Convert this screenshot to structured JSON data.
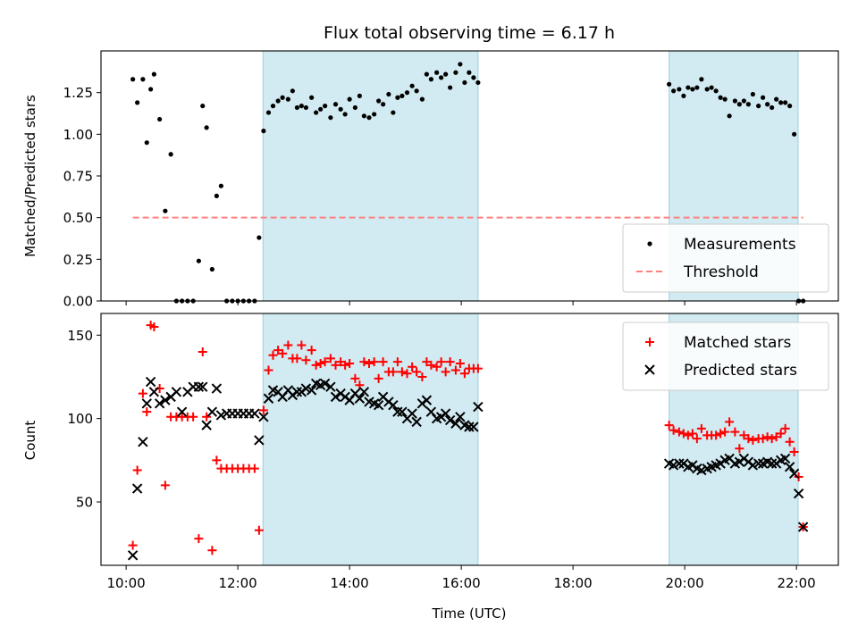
{
  "chart_data": {
    "title": "Flux total observing time = 6.17 h",
    "type": "scatter",
    "xlabel": "Time (UTC)",
    "xlim": [
      9.55,
      22.75
    ],
    "xticks": [
      10,
      12,
      14,
      16,
      18,
      20,
      22
    ],
    "xtick_labels": [
      "10:00",
      "12:00",
      "14:00",
      "16:00",
      "18:00",
      "20:00",
      "22:00"
    ],
    "shaded_intervals": [
      [
        12.45,
        16.3
      ],
      [
        19.72,
        22.03
      ]
    ],
    "shade_color": "#add8e6",
    "panels": [
      {
        "name": "ratio",
        "ylabel": "Matched/Predicted stars",
        "ylim": [
          0,
          1.5
        ],
        "yticks": [
          0,
          0.25,
          0.5,
          0.75,
          1.0,
          1.25
        ],
        "ytick_labels": [
          "0.00",
          "0.25",
          "0.50",
          "0.75",
          "1.00",
          "1.25"
        ],
        "legend_position": "lower-right",
        "series": [
          {
            "name": "Measurements",
            "marker": "dot",
            "color": "#000000",
            "x": [
              10.12,
              10.2,
              10.3,
              10.37,
              10.44,
              10.5,
              10.6,
              10.7,
              10.8,
              10.9,
              11.0,
              11.1,
              11.2,
              11.3,
              11.37,
              11.44,
              11.54,
              11.62,
              11.7,
              11.8,
              11.9,
              12.0,
              12.1,
              12.2,
              12.3,
              12.38,
              12.46,
              12.55,
              12.63,
              12.72,
              12.8,
              12.9,
              12.98,
              13.06,
              13.14,
              13.22,
              13.32,
              13.4,
              13.48,
              13.56,
              13.66,
              13.75,
              13.84,
              13.92,
              14.0,
              14.1,
              14.18,
              14.26,
              14.35,
              14.44,
              14.52,
              14.6,
              14.7,
              14.78,
              14.86,
              14.94,
              15.03,
              15.12,
              15.2,
              15.3,
              15.38,
              15.46,
              15.56,
              15.64,
              15.72,
              15.8,
              15.9,
              15.98,
              16.06,
              16.14,
              16.22,
              16.3,
              19.72,
              19.8,
              19.9,
              19.98,
              20.06,
              20.14,
              20.22,
              20.3,
              20.4,
              20.48,
              20.56,
              20.64,
              20.72,
              20.8,
              20.9,
              20.98,
              21.06,
              21.14,
              21.22,
              21.32,
              21.4,
              21.48,
              21.56,
              21.64,
              21.72,
              21.8,
              21.88,
              21.96,
              22.04,
              22.12
            ],
            "y": [
              1.33,
              1.19,
              1.33,
              0.95,
              1.27,
              1.36,
              1.09,
              0.54,
              0.88,
              0.0,
              0.0,
              0.0,
              0.0,
              0.24,
              1.17,
              1.04,
              0.19,
              0.63,
              0.69,
              0.0,
              0.0,
              0.0,
              0.0,
              0.0,
              0.0,
              0.38,
              1.02,
              1.13,
              1.17,
              1.2,
              1.22,
              1.21,
              1.26,
              1.16,
              1.17,
              1.16,
              1.22,
              1.13,
              1.15,
              1.17,
              1.1,
              1.18,
              1.15,
              1.12,
              1.21,
              1.16,
              1.23,
              1.11,
              1.1,
              1.12,
              1.2,
              1.18,
              1.24,
              1.13,
              1.22,
              1.23,
              1.25,
              1.29,
              1.26,
              1.21,
              1.36,
              1.33,
              1.37,
              1.34,
              1.36,
              1.28,
              1.37,
              1.42,
              1.31,
              1.37,
              1.34,
              1.31,
              1.3,
              1.26,
              1.27,
              1.23,
              1.28,
              1.27,
              1.28,
              1.33,
              1.27,
              1.28,
              1.26,
              1.22,
              1.21,
              1.11,
              1.2,
              1.18,
              1.2,
              1.18,
              1.24,
              1.17,
              1.22,
              1.18,
              1.16,
              1.21,
              1.19,
              1.19,
              1.17,
              1.0,
              0.0,
              0.0
            ]
          },
          {
            "name": "Threshold",
            "marker": "dashed-line",
            "color": "#ff8080",
            "x": [
              10.12,
              22.12
            ],
            "y": [
              0.5,
              0.5
            ]
          }
        ]
      },
      {
        "name": "count",
        "ylabel": "Count",
        "ylim": [
          12,
          163
        ],
        "yticks": [
          50,
          100,
          150
        ],
        "ytick_labels": [
          "50",
          "100",
          "150"
        ],
        "legend_position": "upper-right",
        "series": [
          {
            "name": "Matched stars",
            "marker": "plus",
            "color": "#ff0000",
            "x": [
              10.12,
              10.2,
              10.3,
              10.37,
              10.44,
              10.5,
              10.6,
              10.7,
              10.8,
              10.9,
              11.0,
              11.1,
              11.2,
              11.3,
              11.37,
              11.44,
              11.54,
              11.62,
              11.7,
              11.8,
              11.9,
              12.0,
              12.1,
              12.2,
              12.3,
              12.38,
              12.46,
              12.55,
              12.63,
              12.72,
              12.8,
              12.9,
              12.98,
              13.06,
              13.14,
              13.22,
              13.32,
              13.4,
              13.48,
              13.56,
              13.66,
              13.75,
              13.84,
              13.92,
              14.0,
              14.1,
              14.18,
              14.26,
              14.35,
              14.44,
              14.52,
              14.6,
              14.7,
              14.78,
              14.86,
              14.94,
              15.03,
              15.12,
              15.2,
              15.3,
              15.38,
              15.46,
              15.56,
              15.64,
              15.72,
              15.8,
              15.9,
              15.98,
              16.06,
              16.14,
              16.22,
              16.3,
              19.72,
              19.8,
              19.9,
              19.98,
              20.06,
              20.14,
              20.22,
              20.3,
              20.4,
              20.48,
              20.56,
              20.64,
              20.72,
              20.8,
              20.9,
              20.98,
              21.06,
              21.14,
              21.22,
              21.32,
              21.4,
              21.48,
              21.56,
              21.64,
              21.72,
              21.8,
              21.88,
              21.96,
              22.04,
              22.12
            ],
            "y": [
              24,
              69,
              115,
              104,
              156,
              155,
              118,
              60,
              101,
              101,
              101,
              101,
              101,
              28,
              140,
              101,
              21,
              75,
              70,
              70,
              70,
              70,
              70,
              70,
              70,
              33,
              105,
              129,
              138,
              141,
              139,
              144,
              136,
              136,
              144,
              135,
              141,
              132,
              133,
              134,
              136,
              132,
              134,
              132,
              133,
              124,
              120,
              134,
              133,
              134,
              124,
              134,
              128,
              128,
              134,
              128,
              127,
              131,
              128,
              125,
              134,
              132,
              131,
              134,
              128,
              134,
              129,
              133,
              127,
              130,
              130,
              130,
              96,
              93,
              92,
              91,
              90,
              91,
              88,
              94,
              90,
              90,
              90,
              91,
              92,
              98,
              92,
              82,
              90,
              88,
              87,
              88,
              88,
              89,
              88,
              89,
              91,
              94,
              86,
              80,
              65,
              35
            ]
          },
          {
            "name": "Predicted stars",
            "marker": "x",
            "color": "#000000",
            "x": [
              10.12,
              10.2,
              10.3,
              10.37,
              10.44,
              10.5,
              10.6,
              10.7,
              10.8,
              10.9,
              11.0,
              11.1,
              11.2,
              11.3,
              11.37,
              11.44,
              11.54,
              11.62,
              11.7,
              11.8,
              11.9,
              12.0,
              12.1,
              12.2,
              12.3,
              12.38,
              12.46,
              12.55,
              12.63,
              12.72,
              12.8,
              12.9,
              12.98,
              13.06,
              13.14,
              13.22,
              13.32,
              13.4,
              13.48,
              13.56,
              13.66,
              13.75,
              13.84,
              13.92,
              14.0,
              14.1,
              14.18,
              14.26,
              14.35,
              14.44,
              14.52,
              14.6,
              14.7,
              14.78,
              14.86,
              14.94,
              15.03,
              15.12,
              15.2,
              15.3,
              15.38,
              15.46,
              15.56,
              15.64,
              15.72,
              15.8,
              15.9,
              15.98,
              16.06,
              16.14,
              16.22,
              16.3,
              19.72,
              19.8,
              19.9,
              19.98,
              20.06,
              20.14,
              20.22,
              20.3,
              20.4,
              20.48,
              20.56,
              20.64,
              20.72,
              20.8,
              20.9,
              20.98,
              21.06,
              21.14,
              21.22,
              21.32,
              21.4,
              21.48,
              21.56,
              21.64,
              21.72,
              21.8,
              21.88,
              21.96,
              22.04,
              22.12
            ],
            "y": [
              18,
              58,
              86,
              109,
              122,
              116,
              109,
              111,
              113,
              116,
              104,
              116,
              119,
              119,
              119,
              96,
              104,
              118,
              102,
              103,
              103,
              103,
              103,
              103,
              103,
              87,
              101,
              112,
              117,
              116,
              113,
              117,
              114,
              116,
              116,
              118,
              117,
              121,
              120,
              121,
              119,
              113,
              115,
              113,
              111,
              115,
              112,
              116,
              110,
              109,
              108,
              113,
              110,
              108,
              104,
              104,
              100,
              103,
              98,
              109,
              111,
              104,
              100,
              101,
              103,
              99,
              97,
              101,
              96,
              95,
              95,
              107,
              73,
              72,
              73,
              73,
              71,
              72,
              70,
              69,
              70,
              71,
              72,
              73,
              75,
              76,
              73,
              74,
              76,
              74,
              72,
              73,
              73,
              74,
              73,
              73,
              75,
              76,
              71,
              67,
              55,
              35
            ]
          }
        ]
      }
    ]
  }
}
